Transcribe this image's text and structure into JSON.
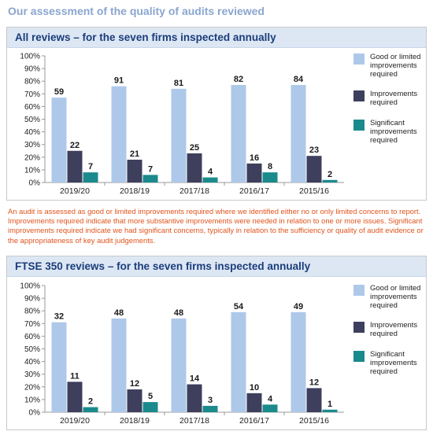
{
  "page_title": "Our assessment of the quality of audits reviewed",
  "note": "An audit is assessed as good or limited improvements required where we identified either no or only limited concerns to report. Improvements required indicate that more substantive improvements were needed in relation to one or more issues. Significant improvements required indicate we had significant concerns, typically in relation to the sufficiency or quality of audit evidence or the appropriateness of key audit judgements.",
  "colors": {
    "good": "#aec8ea",
    "improvements": "#3d3f5c",
    "significant": "#1b8a8c"
  },
  "chart_data": [
    {
      "type": "bar",
      "title": "All reviews – for the seven firms inspected annually",
      "categories": [
        "2019/20",
        "2018/19",
        "2017/18",
        "2016/17",
        "2015/16"
      ],
      "y_ticks": [
        "0%",
        "10%",
        "20%",
        "30%",
        "40%",
        "50%",
        "60%",
        "70%",
        "80%",
        "90%",
        "100%"
      ],
      "ylim": [
        0,
        100
      ],
      "legend_position": "right",
      "series": [
        {
          "name": "Good or limited improvements required",
          "color_key": "good",
          "percent": [
            67,
            76,
            74,
            77,
            77
          ],
          "labels": [
            "59",
            "91",
            "81",
            "82",
            "84"
          ]
        },
        {
          "name": "Improvements required",
          "color_key": "improvements",
          "percent": [
            25,
            18,
            23,
            15,
            21
          ],
          "labels": [
            "22",
            "21",
            "25",
            "16",
            "23"
          ]
        },
        {
          "name": "Significant improvements required",
          "color_key": "significant",
          "percent": [
            8,
            6,
            4,
            8,
            2
          ],
          "labels": [
            "7",
            "7",
            "4",
            "8",
            "2"
          ]
        }
      ]
    },
    {
      "type": "bar",
      "title": "FTSE 350 reviews – for the seven firms inspected annually",
      "categories": [
        "2019/20",
        "2018/19",
        "2017/18",
        "2016/17",
        "2015/16"
      ],
      "y_ticks": [
        "0%",
        "10%",
        "20%",
        "30%",
        "40%",
        "50%",
        "60%",
        "70%",
        "80%",
        "90%",
        "100%"
      ],
      "ylim": [
        0,
        100
      ],
      "legend_position": "right",
      "series": [
        {
          "name": "Good or limited improvements required",
          "color_key": "good",
          "percent": [
            71,
            74,
            74,
            79,
            79
          ],
          "labels": [
            "32",
            "48",
            "48",
            "54",
            "49"
          ]
        },
        {
          "name": "Improvements required",
          "color_key": "improvements",
          "percent": [
            24,
            18,
            22,
            15,
            19
          ],
          "labels": [
            "11",
            "12",
            "14",
            "10",
            "12"
          ]
        },
        {
          "name": "Significant improvements required",
          "color_key": "significant",
          "percent": [
            4,
            8,
            5,
            6,
            2
          ],
          "labels": [
            "2",
            "5",
            "3",
            "4",
            "1"
          ]
        }
      ]
    }
  ]
}
